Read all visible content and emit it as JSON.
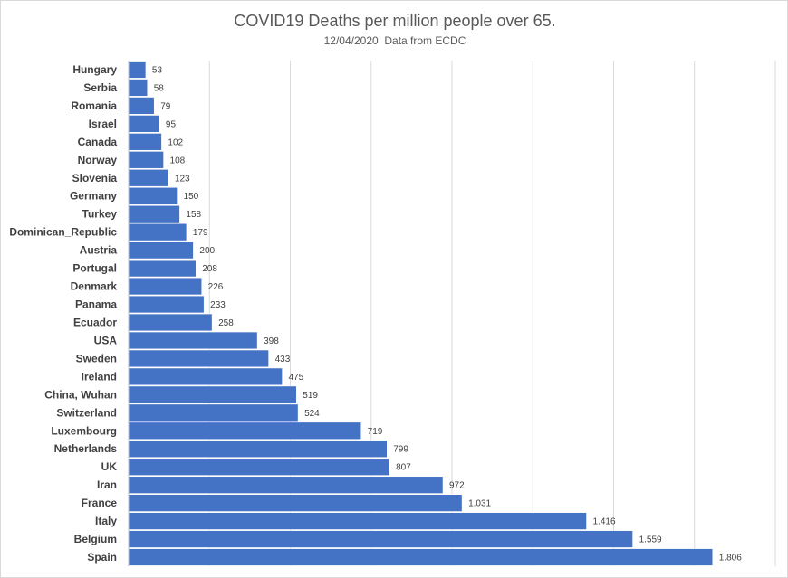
{
  "chart_data": {
    "type": "bar",
    "orientation": "horizontal",
    "title": "COVID19 Deaths per million people over 65.",
    "subtitle": "12/04/2020  Data from ECDC",
    "xlabel": "",
    "ylabel": "",
    "xlim": [
      0,
      2000
    ],
    "grid": true,
    "legend": "none",
    "bar_color": "#4472C4",
    "categories": [
      "Hungary",
      "Serbia",
      "Romania",
      "Israel",
      "Canada",
      "Norway",
      "Slovenia",
      "Germany",
      "Turkey",
      "Dominican_Republic",
      "Austria",
      "Portugal",
      "Denmark",
      "Panama",
      "Ecuador",
      "USA",
      "Sweden",
      "Ireland",
      "China, Wuhan",
      "Switzerland",
      "Luxembourg",
      "Netherlands",
      "UK",
      "Iran",
      "France",
      "Italy",
      "Belgium",
      "Spain"
    ],
    "values": [
      53,
      58,
      79,
      95,
      102,
      108,
      123,
      150,
      158,
      179,
      200,
      208,
      226,
      233,
      258,
      398,
      433,
      475,
      519,
      524,
      719,
      799,
      807,
      972,
      1031,
      1416,
      1559,
      1806
    ],
    "value_labels": [
      "53",
      "58",
      "79",
      "95",
      "102",
      "108",
      "123",
      "150",
      "158",
      "179",
      "200",
      "208",
      "226",
      "233",
      "258",
      "398",
      "433",
      "475",
      "519",
      "524",
      "719",
      "799",
      "807",
      "972",
      "1.031",
      "1.416",
      "1.559",
      "1.806"
    ]
  }
}
